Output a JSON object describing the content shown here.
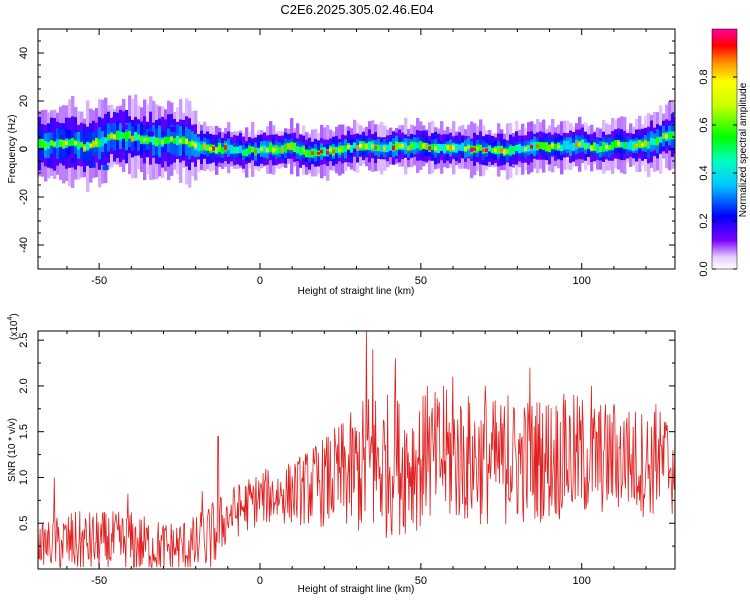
{
  "title": "C2E6.2025.305.02.46.E04",
  "chart_data": [
    {
      "type": "heatmap",
      "name": "spectrogram",
      "xlabel": "Height of straight line (km)",
      "ylabel": "Frequency (Hz)",
      "xlim": [
        -69,
        129
      ],
      "ylim": [
        -50,
        50
      ],
      "xticks": [
        -50,
        0,
        50,
        100
      ],
      "yticks": [
        -40,
        -20,
        0,
        20,
        40
      ],
      "colorbar": {
        "label": "Normalized spectral amplitude",
        "range": [
          0,
          1
        ],
        "ticks": [
          "0.0",
          "0.2",
          "0.4",
          "0.6",
          "0.8"
        ],
        "tick_values": [
          0.0,
          0.2,
          0.4,
          0.6,
          0.8
        ]
      },
      "ridge_center_hz": [
        [
          -65,
          2
        ],
        [
          -60,
          3
        ],
        [
          -55,
          1
        ],
        [
          -50,
          3
        ],
        [
          -45,
          6
        ],
        [
          -40,
          5
        ],
        [
          -35,
          4
        ],
        [
          -30,
          3
        ],
        [
          -25,
          4
        ],
        [
          -20,
          1
        ],
        [
          -15,
          0
        ],
        [
          -10,
          0
        ],
        [
          -5,
          -1
        ],
        [
          0,
          0
        ],
        [
          5,
          0
        ],
        [
          10,
          1
        ],
        [
          15,
          -2
        ],
        [
          20,
          -1
        ],
        [
          25,
          0
        ],
        [
          30,
          1
        ],
        [
          35,
          1
        ],
        [
          40,
          1
        ],
        [
          45,
          1
        ],
        [
          50,
          1
        ],
        [
          55,
          0
        ],
        [
          60,
          1
        ],
        [
          65,
          0
        ],
        [
          70,
          0
        ],
        [
          75,
          -1
        ],
        [
          80,
          0
        ],
        [
          85,
          1
        ],
        [
          90,
          1
        ],
        [
          95,
          1
        ],
        [
          100,
          2
        ],
        [
          105,
          0
        ],
        [
          110,
          2
        ],
        [
          115,
          1
        ],
        [
          120,
          2
        ],
        [
          125,
          5
        ]
      ]
    },
    {
      "type": "line",
      "name": "snr",
      "xlabel": "Height of straight line (km)",
      "ylabel": "SNR (10 * v/v)",
      "yscale_label": "(x10",
      "yscale_exponent": "4",
      "xlim": [
        -69,
        129
      ],
      "ylim": [
        0,
        2.6
      ],
      "xticks": [
        -50,
        0,
        50,
        100
      ],
      "yticks": [
        "0.5",
        "1.0",
        "1.5",
        "2.0",
        "2.5"
      ],
      "ytick_values": [
        0.5,
        1.0,
        1.5,
        2.0,
        2.5
      ],
      "color": "#e02020",
      "envelope": {
        "x": [
          -69,
          -60,
          -50,
          -40,
          -30,
          -20,
          -15,
          -10,
          -5,
          0,
          10,
          20,
          30,
          35,
          40,
          50,
          60,
          70,
          80,
          90,
          100,
          110,
          120,
          129
        ],
        "baseline": [
          0.25,
          0.25,
          0.25,
          0.25,
          0.2,
          0.2,
          0.3,
          0.55,
          0.65,
          0.75,
          0.8,
          0.9,
          1.0,
          1.05,
          1.05,
          1.1,
          1.15,
          1.1,
          1.1,
          1.15,
          1.15,
          1.15,
          1.1,
          1.1
        ],
        "spread": [
          0.2,
          0.35,
          0.35,
          0.35,
          0.3,
          0.35,
          0.4,
          0.3,
          0.3,
          0.3,
          0.35,
          0.5,
          0.7,
          0.9,
          0.8,
          0.75,
          0.75,
          0.7,
          0.7,
          0.7,
          0.7,
          0.6,
          0.6,
          0.6
        ]
      },
      "peaks": [
        [
          -64,
          1.0
        ],
        [
          -41,
          0.82
        ],
        [
          -18,
          0.85
        ],
        [
          -13,
          1.45
        ],
        [
          33,
          2.6
        ],
        [
          35,
          2.4
        ],
        [
          42,
          2.3
        ],
        [
          52,
          2.0
        ],
        [
          57,
          2.0
        ],
        [
          60,
          2.1
        ],
        [
          70,
          2.0
        ],
        [
          77,
          1.9
        ],
        [
          84,
          2.2
        ],
        [
          95,
          1.85
        ],
        [
          103,
          2.0
        ],
        [
          110,
          1.8
        ],
        [
          114,
          1.65
        ],
        [
          123,
          1.8
        ]
      ]
    }
  ]
}
